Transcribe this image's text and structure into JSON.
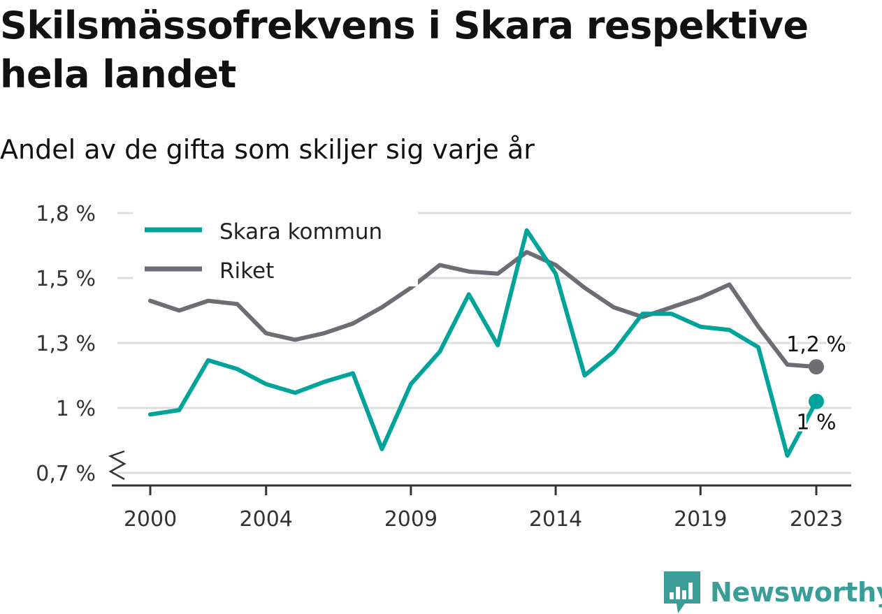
{
  "header": {
    "title": "Skilsmässofrekvens i Skara respektive hela landet",
    "subtitle": "Andel av de gifta som skiljer sig varje år"
  },
  "branding": {
    "name": "Newsworthy",
    "icon": "newsworthy-logo-icon",
    "color": "#3a9d97"
  },
  "chart_data": {
    "type": "line",
    "title": "Skilsmässofrekvens i Skara respektive hela landet",
    "subtitle": "Andel av de gifta som skiljer sig varje år",
    "xlabel": "",
    "ylabel": "",
    "ylim": [
      0.7,
      1.8
    ],
    "y_ticks": [
      0.7,
      1.0,
      1.3,
      1.5,
      1.8
    ],
    "y_tick_labels": [
      "0,7 %",
      "1 %",
      "1,3 %",
      "1,5 %",
      "1,8 %"
    ],
    "y_axis_break": true,
    "x_ticks": [
      2000,
      2004,
      2009,
      2014,
      2019,
      2023
    ],
    "x_tick_labels": [
      "2000",
      "2004",
      "2009",
      "2014",
      "2019",
      "2023"
    ],
    "grid": true,
    "legend_position": "top-left",
    "x": [
      2000,
      2001,
      2002,
      2003,
      2004,
      2005,
      2006,
      2007,
      2008,
      2009,
      2010,
      2011,
      2012,
      2013,
      2014,
      2015,
      2016,
      2017,
      2018,
      2019,
      2020,
      2021,
      2022,
      2023
    ],
    "series": [
      {
        "name": "Skara kommun",
        "color": "#00a39a",
        "values": [
          0.97,
          0.99,
          1.22,
          1.18,
          1.11,
          1.07,
          1.12,
          1.16,
          0.81,
          1.11,
          1.26,
          1.45,
          1.29,
          1.72,
          1.52,
          1.15,
          1.26,
          1.39,
          1.39,
          1.35,
          1.34,
          1.28,
          0.78,
          1.03
        ],
        "end_label": "1 %"
      },
      {
        "name": "Riket",
        "color": "#6e6d74",
        "values": [
          1.43,
          1.4,
          1.43,
          1.42,
          1.33,
          1.31,
          1.33,
          1.36,
          1.41,
          1.47,
          1.56,
          1.53,
          1.52,
          1.62,
          1.56,
          1.47,
          1.41,
          1.38,
          1.41,
          1.44,
          1.48,
          1.35,
          1.2,
          1.19
        ],
        "end_label": "1,2 %"
      }
    ]
  }
}
